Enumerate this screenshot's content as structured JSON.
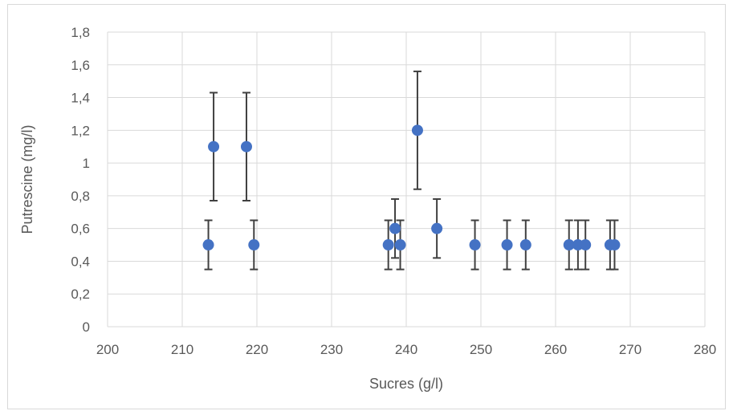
{
  "chart_data": {
    "type": "scatter",
    "xlabel": "Sucres (g/l)",
    "ylabel": "Putrescine (mg/l)",
    "xlim": [
      200,
      280
    ],
    "ylim": [
      0,
      1.8
    ],
    "x_ticks": [
      "200",
      "210",
      "220",
      "230",
      "240",
      "250",
      "260",
      "270",
      "280"
    ],
    "y_ticks": [
      "0",
      "0,2",
      "0,4",
      "0,6",
      "0,8",
      "1",
      "1,2",
      "1,4",
      "1,6",
      "1,8"
    ],
    "grid": "both",
    "error_bars": "y",
    "color": "#4472c4",
    "points": [
      {
        "x": 213.5,
        "y": 0.5,
        "err": 0.15
      },
      {
        "x": 214.2,
        "y": 1.1,
        "err": 0.33
      },
      {
        "x": 218.6,
        "y": 1.1,
        "err": 0.33
      },
      {
        "x": 219.6,
        "y": 0.5,
        "err": 0.15
      },
      {
        "x": 237.6,
        "y": 0.5,
        "err": 0.15
      },
      {
        "x": 238.5,
        "y": 0.6,
        "err": 0.18
      },
      {
        "x": 239.2,
        "y": 0.5,
        "err": 0.15
      },
      {
        "x": 241.5,
        "y": 1.2,
        "err": 0.36
      },
      {
        "x": 244.1,
        "y": 0.6,
        "err": 0.18
      },
      {
        "x": 249.2,
        "y": 0.5,
        "err": 0.15
      },
      {
        "x": 253.5,
        "y": 0.5,
        "err": 0.15
      },
      {
        "x": 256.0,
        "y": 0.5,
        "err": 0.15
      },
      {
        "x": 261.8,
        "y": 0.5,
        "err": 0.15
      },
      {
        "x": 263.0,
        "y": 0.5,
        "err": 0.15
      },
      {
        "x": 264.0,
        "y": 0.5,
        "err": 0.15
      },
      {
        "x": 267.3,
        "y": 0.5,
        "err": 0.15
      },
      {
        "x": 267.9,
        "y": 0.5,
        "err": 0.15
      }
    ]
  }
}
